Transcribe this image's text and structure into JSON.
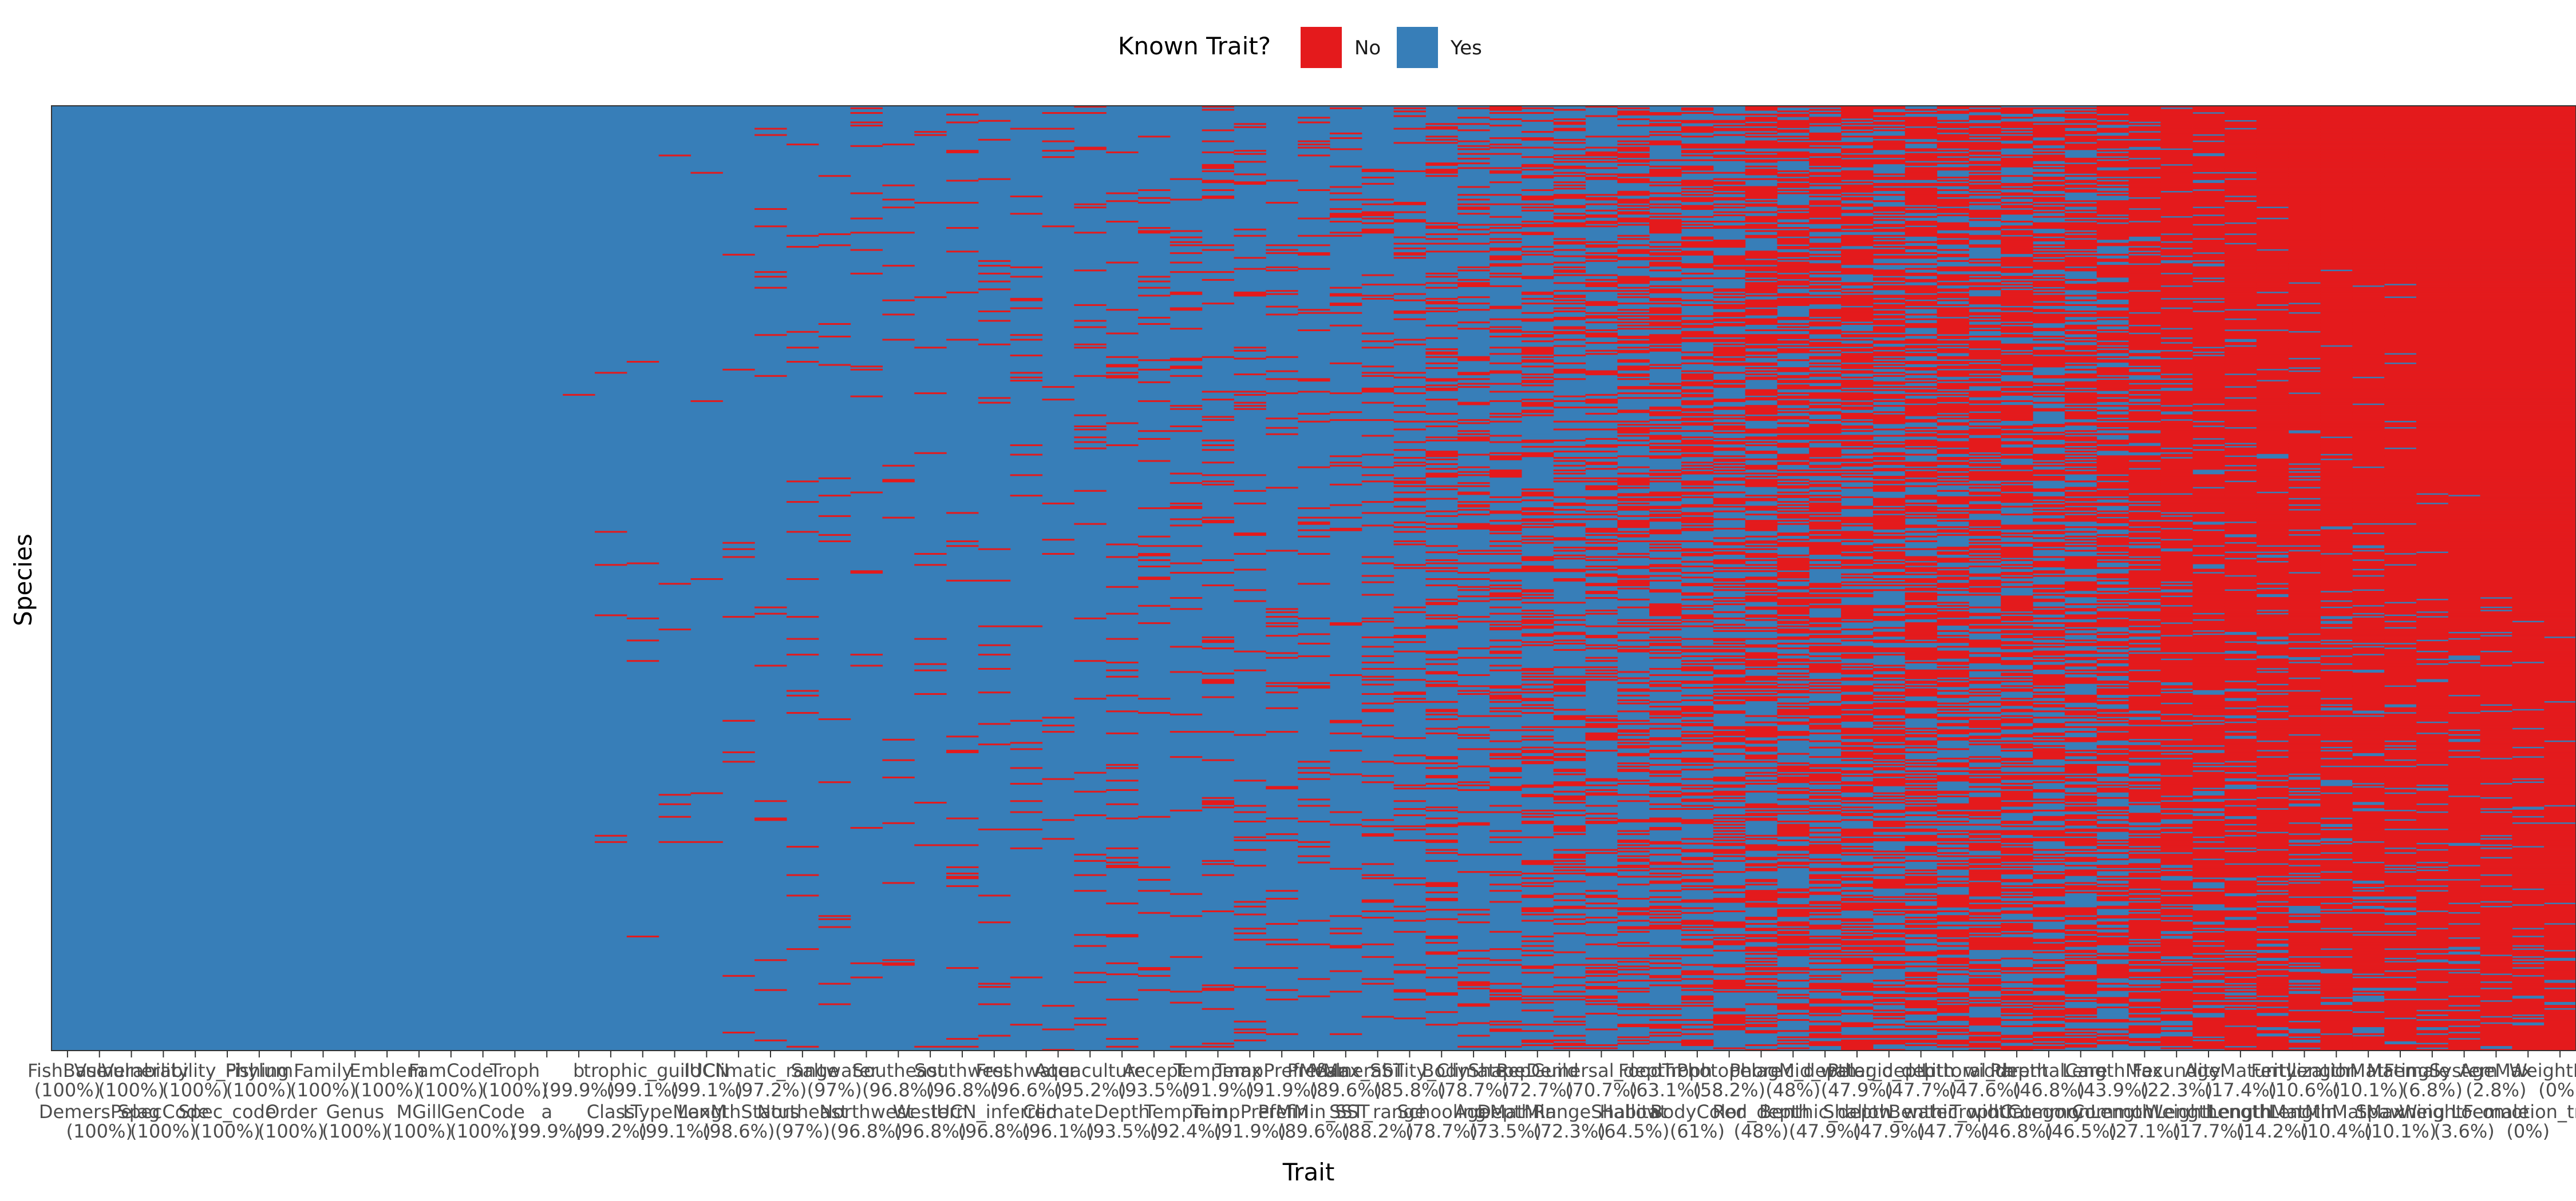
{
  "chart_data": {
    "type": "heatmap",
    "xlabel": "Trait",
    "ylabel": "Species",
    "legend": {
      "title": "Known Trait?",
      "position": "top",
      "entries": [
        {
          "label": "No",
          "color": "#E41A1C"
        },
        {
          "label": "Yes",
          "color": "#377EB8"
        }
      ]
    },
    "traits": [
      {
        "name": "FishBase",
        "pct": "(100%)",
        "known": 100,
        "row": 1
      },
      {
        "name": "DemersPelag",
        "pct": "(100%)",
        "known": 100,
        "row": 2
      },
      {
        "name": "Vulnerability",
        "pct": "(100%)",
        "known": 100,
        "row": 1
      },
      {
        "name": "SpecCode",
        "pct": "(100%)",
        "known": 100,
        "row": 2
      },
      {
        "name": "Vulnerability_Fishing",
        "pct": "(100%)",
        "known": 100,
        "row": 1
      },
      {
        "name": "Spec_code",
        "pct": "(100%)",
        "known": 100,
        "row": 2
      },
      {
        "name": "Phylum",
        "pct": "(100%)",
        "known": 100,
        "row": 1
      },
      {
        "name": "Order",
        "pct": "(100%)",
        "known": 100,
        "row": 2
      },
      {
        "name": "Family",
        "pct": "(100%)",
        "known": 100,
        "row": 1
      },
      {
        "name": "Genus",
        "pct": "(100%)",
        "known": 100,
        "row": 2
      },
      {
        "name": "Emblem",
        "pct": "(100%)",
        "known": 100,
        "row": 1
      },
      {
        "name": "MGill",
        "pct": "(100%)",
        "known": 100,
        "row": 2
      },
      {
        "name": "FamCode",
        "pct": "(100%)",
        "known": 100,
        "row": 1
      },
      {
        "name": "GenCode",
        "pct": "(100%)",
        "known": 100,
        "row": 2
      },
      {
        "name": "Troph",
        "pct": "(100%)",
        "known": 100,
        "row": 1
      },
      {
        "name": "a",
        "pct": "(99.9%)",
        "known": 99.9,
        "row": 2
      },
      {
        "name": "b",
        "pct": "(99.9%)",
        "known": 99.9,
        "row": 1
      },
      {
        "name": "Class",
        "pct": "(99.2%)",
        "known": 99.2,
        "row": 2
      },
      {
        "name": "trophic_guild",
        "pct": "(99.1%)",
        "known": 99.1,
        "row": 1
      },
      {
        "name": "LTypeMaxM",
        "pct": "(99.1%)",
        "known": 99.1,
        "row": 2
      },
      {
        "name": "IUCN",
        "pct": "(99.1%)",
        "known": 99.1,
        "row": 1
      },
      {
        "name": "LengthStatus",
        "pct": "(98.6%)",
        "known": 98.6,
        "row": 2
      },
      {
        "name": "Climatic_range",
        "pct": "(97.2%)",
        "known": 97.2,
        "row": 1
      },
      {
        "name": "Northeast",
        "pct": "(97%)",
        "known": 97,
        "row": 2
      },
      {
        "name": "Saltwater",
        "pct": "(97%)",
        "known": 97,
        "row": 1
      },
      {
        "name": "Northwest",
        "pct": "(96.8%)",
        "known": 96.8,
        "row": 2
      },
      {
        "name": "Southeast",
        "pct": "(96.8%)",
        "known": 96.8,
        "row": 1
      },
      {
        "name": "Western",
        "pct": "(96.8%)",
        "known": 96.8,
        "row": 2
      },
      {
        "name": "Southwest",
        "pct": "(96.8%)",
        "known": 96.8,
        "row": 1
      },
      {
        "name": "IUCN_inferred",
        "pct": "(96.8%)",
        "known": 96.8,
        "row": 2
      },
      {
        "name": "Freshwater",
        "pct": "(96.6%)",
        "known": 96.6,
        "row": 1
      },
      {
        "name": "Climate",
        "pct": "(96.1%)",
        "known": 96.1,
        "row": 2
      },
      {
        "name": "Aquaculture",
        "pct": "(95.2%)",
        "known": 95.2,
        "row": 1
      },
      {
        "name": "Depth",
        "pct": "(93.5%)",
        "known": 93.5,
        "row": 2
      },
      {
        "name": "Accept",
        "pct": "(93.5%)",
        "known": 93.5,
        "row": 1
      },
      {
        "name": "Tempmin",
        "pct": "(92.4%)",
        "known": 92.4,
        "row": 2
      },
      {
        "name": "Tempmax",
        "pct": "(91.9%)",
        "known": 91.9,
        "row": 1
      },
      {
        "name": "TempPrefMin",
        "pct": "(91.9%)",
        "known": 91.9,
        "row": 2
      },
      {
        "name": "TempPrefMean",
        "pct": "(91.9%)",
        "known": 91.9,
        "row": 1
      },
      {
        "name": "PrefMin_SST",
        "pct": "(89.6%)",
        "known": 89.6,
        "row": 2
      },
      {
        "name": "PrefMax_SST",
        "pct": "(89.6%)",
        "known": 89.6,
        "row": 1
      },
      {
        "name": "SST_range",
        "pct": "(88.2%)",
        "known": 88.2,
        "row": 2
      },
      {
        "name": "Vulnerability_Climate",
        "pct": "(85.8%)",
        "known": 85.8,
        "row": 1
      },
      {
        "name": "Schooling",
        "pct": "(78.7%)",
        "known": 78.7,
        "row": 2
      },
      {
        "name": "BodyShape",
        "pct": "(78.7%)",
        "known": 78.7,
        "row": 1
      },
      {
        "name": "AgeMatMin",
        "pct": "(73.5%)",
        "known": 73.5,
        "row": 2
      },
      {
        "name": "RepGuild",
        "pct": "(72.7%)",
        "known": 72.7,
        "row": 1
      },
      {
        "name": "DepthRangeShallow",
        "pct": "(72.3%)",
        "known": 72.3,
        "row": 2
      },
      {
        "name": "Demersal_depth",
        "pct": "(70.7%)",
        "known": 70.7,
        "row": 1
      },
      {
        "name": "Habitat",
        "pct": "(64.5%)",
        "known": 64.5,
        "row": 2
      },
      {
        "name": "FoodTroph",
        "pct": "(63.1%)",
        "known": 63.1,
        "row": 1
      },
      {
        "name": "BodyColor",
        "pct": "(61%)",
        "known": 61,
        "row": 2
      },
      {
        "name": "Photophore",
        "pct": "(58.2%)",
        "known": 58.2,
        "row": 1
      },
      {
        "name": "Red_depth",
        "pct": "(48%)",
        "known": 48,
        "row": 2
      },
      {
        "name": "Pelagic_depth",
        "pct": "(48%)",
        "known": 48,
        "row": 1
      },
      {
        "name": "Benthic_depth",
        "pct": "(47.9%)",
        "known": 47.9,
        "row": 2
      },
      {
        "name": "Mid_water_depth",
        "pct": "(47.9%)",
        "known": 47.9,
        "row": 1
      },
      {
        "name": "Shallow_water",
        "pct": "(47.9%)",
        "known": 47.9,
        "row": 2
      },
      {
        "name": "Pelagic_depth_width",
        "pct": "(47.7%)",
        "known": 47.7,
        "row": 1
      },
      {
        "name": "Benthic_width",
        "pct": "(47.7%)",
        "known": 47.7,
        "row": 2
      },
      {
        "name": "Littoral_depth",
        "pct": "(47.6%)",
        "known": 47.6,
        "row": 1
      },
      {
        "name": "TrophCategory",
        "pct": "(46.8%)",
        "known": 46.8,
        "row": 2
      },
      {
        "name": "ParentalCare",
        "pct": "(46.8%)",
        "known": 46.8,
        "row": 1
      },
      {
        "name": "CommonLength",
        "pct": "(46.5%)",
        "known": 46.5,
        "row": 2
      },
      {
        "name": "LengthMax",
        "pct": "(43.9%)",
        "known": 43.9,
        "row": 1
      },
      {
        "name": "CommonLength",
        "pct": "(27.1%)",
        "known": 27.1,
        "row": 2
      },
      {
        "name": "Fecundity",
        "pct": "(22.3%)",
        "known": 22.3,
        "row": 1
      },
      {
        "name": "WeightLength",
        "pct": "(17.7%)",
        "known": 17.7,
        "row": 2
      },
      {
        "name": "AgeMaturity",
        "pct": "(17.4%)",
        "known": 17.4,
        "row": 1
      },
      {
        "name": "LengthMatMin",
        "pct": "(14.2%)",
        "known": 14.2,
        "row": 2
      },
      {
        "name": "Fertilization",
        "pct": "(10.6%)",
        "known": 10.6,
        "row": 1
      },
      {
        "name": "LengthMatMax",
        "pct": "(10.4%)",
        "known": 10.4,
        "row": 2
      },
      {
        "name": "LengthMatFemale",
        "pct": "(10.1%)",
        "known": 10.1,
        "row": 1
      },
      {
        "name": "Spawning",
        "pct": "(10.1%)",
        "known": 10.1,
        "row": 2
      },
      {
        "name": "MatingSystem",
        "pct": "(6.8%)",
        "known": 6.8,
        "row": 1
      },
      {
        "name": "WeightFemale",
        "pct": "(3.6%)",
        "known": 3.6,
        "row": 2
      },
      {
        "name": "AgeMax",
        "pct": "(2.8%)",
        "known": 2.8,
        "row": 1
      },
      {
        "name": "Locomotion_trait",
        "pct": "(0%)",
        "known": 0,
        "row": 2
      },
      {
        "name": "WeightMax",
        "pct": "(0%)",
        "known": 0,
        "row": 1
      }
    ]
  }
}
